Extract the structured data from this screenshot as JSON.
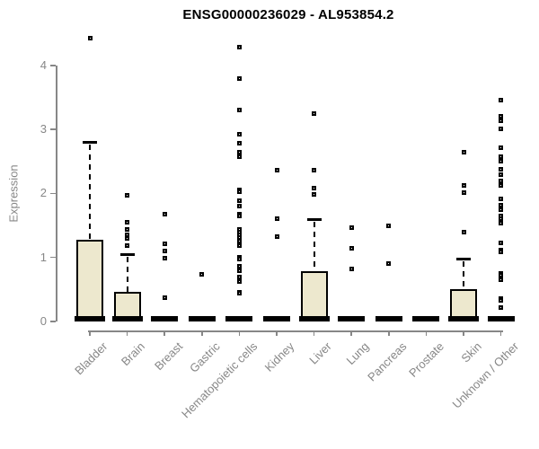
{
  "chart_data": {
    "type": "boxplot",
    "title": "ENSG00000236029 - AL953854.2",
    "ylabel": "Expression",
    "xlabel": "",
    "yticks": [
      0,
      1,
      2,
      3,
      4
    ],
    "ylim": [
      0,
      4.5
    ],
    "grid": false,
    "legend": "none",
    "colors": {
      "box_fill": "#ede8ce",
      "box_border": "#000000",
      "median": "#000000",
      "axis": "#878787",
      "title_text": "#000000"
    },
    "groups": [
      {
        "label": "Bladder",
        "min": 0,
        "q1": 0,
        "median": 0,
        "q3": 1.27,
        "whisker_high": 2.8,
        "outliers": [
          4.42
        ]
      },
      {
        "label": "Brain",
        "min": 0,
        "q1": 0,
        "median": 0,
        "q3": 0.46,
        "whisker_high": 1.05,
        "outliers": [
          1.97,
          1.55,
          1.44,
          1.36,
          1.3,
          1.19
        ]
      },
      {
        "label": "Breast",
        "min": 0,
        "q1": 0,
        "median": 0,
        "q3": 0,
        "whisker_high": null,
        "outliers": [
          1.68,
          1.22,
          1.1,
          0.99,
          0.37
        ]
      },
      {
        "label": "Gastric",
        "min": 0,
        "q1": 0,
        "median": 0,
        "q3": 0,
        "whisker_high": null,
        "outliers": [
          0.74
        ]
      },
      {
        "label": "Hematopoietic cells",
        "min": 0,
        "q1": 0,
        "median": 0,
        "q3": 0,
        "whisker_high": null,
        "outliers": [
          4.28,
          3.79,
          3.3,
          2.93,
          2.79,
          2.65,
          2.57,
          2.05,
          2.02,
          1.89,
          1.8,
          1.68,
          1.65,
          1.44,
          1.4,
          1.35,
          1.31,
          1.26,
          1.22,
          1.19,
          1.0,
          0.97,
          0.86,
          0.82,
          0.79,
          0.7,
          0.65,
          0.63,
          0.46,
          0.44
        ]
      },
      {
        "label": "Kidney",
        "min": 0,
        "q1": 0,
        "median": 0,
        "q3": 0,
        "whisker_high": null,
        "outliers": [
          2.36,
          1.61,
          1.33
        ]
      },
      {
        "label": "Liver",
        "min": 0,
        "q1": 0,
        "median": 0,
        "q3": 0.78,
        "whisker_high": 1.6,
        "outliers": [
          3.24,
          2.36,
          2.08,
          1.99
        ]
      },
      {
        "label": "Lung",
        "min": 0,
        "q1": 0,
        "median": 0,
        "q3": 0,
        "whisker_high": null,
        "outliers": [
          1.46,
          1.14,
          0.82
        ]
      },
      {
        "label": "Pancreas",
        "min": 0,
        "q1": 0,
        "median": 0,
        "q3": 0,
        "whisker_high": null,
        "outliers": [
          1.49,
          0.91
        ]
      },
      {
        "label": "Prostate",
        "min": 0,
        "q1": 0,
        "median": 0,
        "q3": 0,
        "whisker_high": null,
        "outliers": []
      },
      {
        "label": "Skin",
        "min": 0,
        "q1": 0,
        "median": 0,
        "q3": 0.51,
        "whisker_high": 0.98,
        "outliers": [
          2.64,
          2.13,
          2.01,
          1.4
        ]
      },
      {
        "label": "Unknown / Other",
        "min": 0,
        "q1": 0,
        "median": 0,
        "q3": 0,
        "whisker_high": null,
        "outliers": [
          3.46,
          3.2,
          3.13,
          3.01,
          2.72,
          2.57,
          2.51,
          2.38,
          2.29,
          2.2,
          2.12,
          1.92,
          1.82,
          1.75,
          1.65,
          1.6,
          1.54,
          1.23,
          1.12,
          1.09,
          0.75,
          0.72,
          0.65,
          0.36,
          0.33,
          0.22
        ]
      }
    ]
  }
}
